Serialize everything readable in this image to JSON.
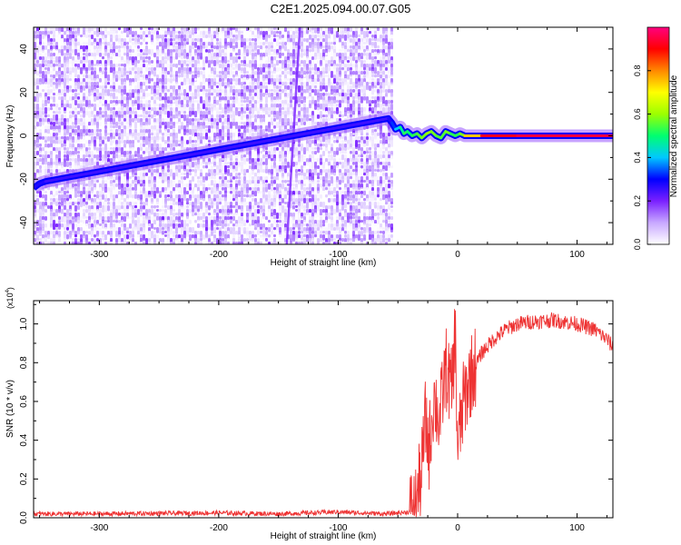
{
  "title": "C2E1.2025.094.00.07.G05",
  "chart_data": [
    {
      "type": "heatmap",
      "xlabel": "Height of straight line (km)",
      "ylabel": "Frequency (Hz)",
      "xlim": [
        -355,
        130
      ],
      "ylim": [
        -50,
        50
      ],
      "xticks": [
        -300,
        -200,
        -100,
        0,
        100
      ],
      "yticks": [
        -40,
        -20,
        0,
        20,
        40
      ],
      "colorbar": {
        "label": "Normalized spectral amplitude",
        "range": [
          0,
          1
        ],
        "ticks": [
          "0.0",
          "0.2",
          "0.4",
          "0.6",
          "0.8"
        ],
        "tick_values": [
          0,
          0.2,
          0.4,
          0.6,
          0.8
        ],
        "colors": [
          "#ffffff",
          "#c8a8ff",
          "#7a20ff",
          "#0000ff",
          "#00c8ff",
          "#00ff70",
          "#9cff00",
          "#ffff00",
          "#ff8800",
          "#ff0000",
          "#ff0080"
        ]
      },
      "noise_region_x": [
        -355,
        -55
      ],
      "signal_track": {
        "x": [
          -355,
          -350,
          -345,
          -58,
          -55,
          -52,
          -48,
          -45,
          -42,
          -38,
          -34,
          -30,
          -26,
          -22,
          -18,
          -14,
          -10,
          -6,
          -2,
          2,
          6,
          20,
          50,
          80,
          110,
          130
        ],
        "freq": [
          -24,
          -22,
          -21,
          8,
          6,
          3,
          4,
          1,
          2,
          0,
          1,
          -1,
          1,
          2,
          0,
          -1,
          2,
          1,
          0,
          1,
          0,
          0,
          0,
          0,
          0,
          0
        ],
        "amplitude": [
          0.25,
          0.3,
          0.25,
          0.25,
          0.3,
          0.35,
          0.45,
          0.5,
          0.55,
          0.45,
          0.6,
          0.5,
          0.65,
          0.55,
          0.6,
          0.5,
          0.6,
          0.55,
          0.5,
          0.55,
          0.6,
          0.9,
          0.95,
          0.95,
          0.95,
          0.95
        ]
      }
    },
    {
      "type": "line",
      "xlabel": "Height of straight line (km)",
      "ylabel": "SNR (10 * v/v)",
      "y_multiplier": "(x10^4)",
      "y_multiplier_base": "(x10",
      "y_multiplier_exp": "4",
      "xlim": [
        -355,
        130
      ],
      "ylim": [
        0,
        1.12
      ],
      "xticks": [
        -300,
        -200,
        -100,
        0,
        100
      ],
      "yticks": [
        "0.0",
        "0.2",
        "0.4",
        "0.6",
        "0.8",
        "1.0"
      ],
      "ytick_values": [
        0,
        0.2,
        0.4,
        0.6,
        0.8,
        1.0
      ],
      "series": [
        {
          "color": "#ee3333",
          "x": [
            -355,
            -300,
            -200,
            -150,
            -100,
            -60,
            -40,
            -35,
            -30,
            -27,
            -24,
            -20,
            -15,
            -10,
            -5,
            -2,
            0,
            5,
            10,
            20,
            30,
            40,
            50,
            60,
            80,
            100,
            115,
            125,
            130
          ],
          "y": [
            0.02,
            0.02,
            0.025,
            0.02,
            0.03,
            0.02,
            0.03,
            0.06,
            0.25,
            0.5,
            0.35,
            0.62,
            0.5,
            0.78,
            0.65,
            0.95,
            0.35,
            0.6,
            0.72,
            0.85,
            0.92,
            0.97,
            1.0,
            1.01,
            1.02,
            1.0,
            0.97,
            0.92,
            0.88
          ]
        }
      ]
    }
  ]
}
